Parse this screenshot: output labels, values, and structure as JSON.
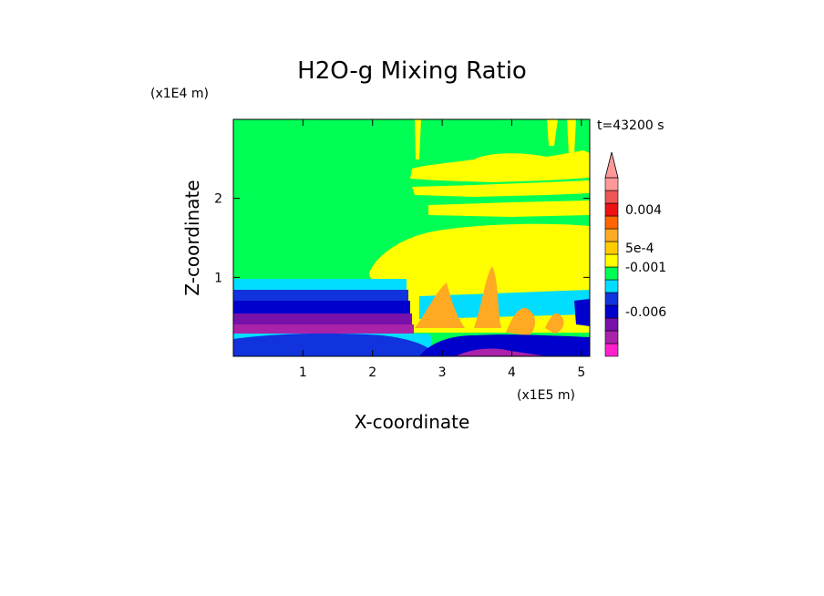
{
  "chart_data": {
    "type": "heatmap",
    "title": "H2O-g Mixing Ratio",
    "xlabel": "X-coordinate",
    "ylabel": "Z-coordinate",
    "x_unit": "(x1E5 m)",
    "y_unit": "(x1E4 m)",
    "time_label": "t=43200 s",
    "xlim": [
      0,
      5.12
    ],
    "ylim": [
      0,
      3.0
    ],
    "x_ticks": [
      "1",
      "2",
      "3",
      "4",
      "5"
    ],
    "y_ticks": [
      "1",
      "2"
    ],
    "x_tick_values": [
      1,
      2,
      3,
      4,
      5
    ],
    "y_tick_values": [
      1,
      2
    ],
    "colorbar": {
      "labels": [
        "0.004",
        "5e-4",
        "-0.001",
        "-0.006"
      ],
      "colors_bottom_to_top": [
        "#ff22cc",
        "#aa22aa",
        "#7711aa",
        "#0000cc",
        "#1133dd",
        "#00ddff",
        "#00ff55",
        "#ffff00",
        "#ffcc00",
        "#ffaa22",
        "#ff6600",
        "#ee1111",
        "#ee5555",
        "#ff9999"
      ]
    },
    "regions": {
      "green": "#00ff55",
      "yellow": "#ffff00",
      "orange": "#ffaa22",
      "cyan": "#00ddff",
      "blue": "#1133dd",
      "navy": "#0000cc",
      "purple": "#7711aa",
      "magenta": "#aa22aa"
    }
  }
}
